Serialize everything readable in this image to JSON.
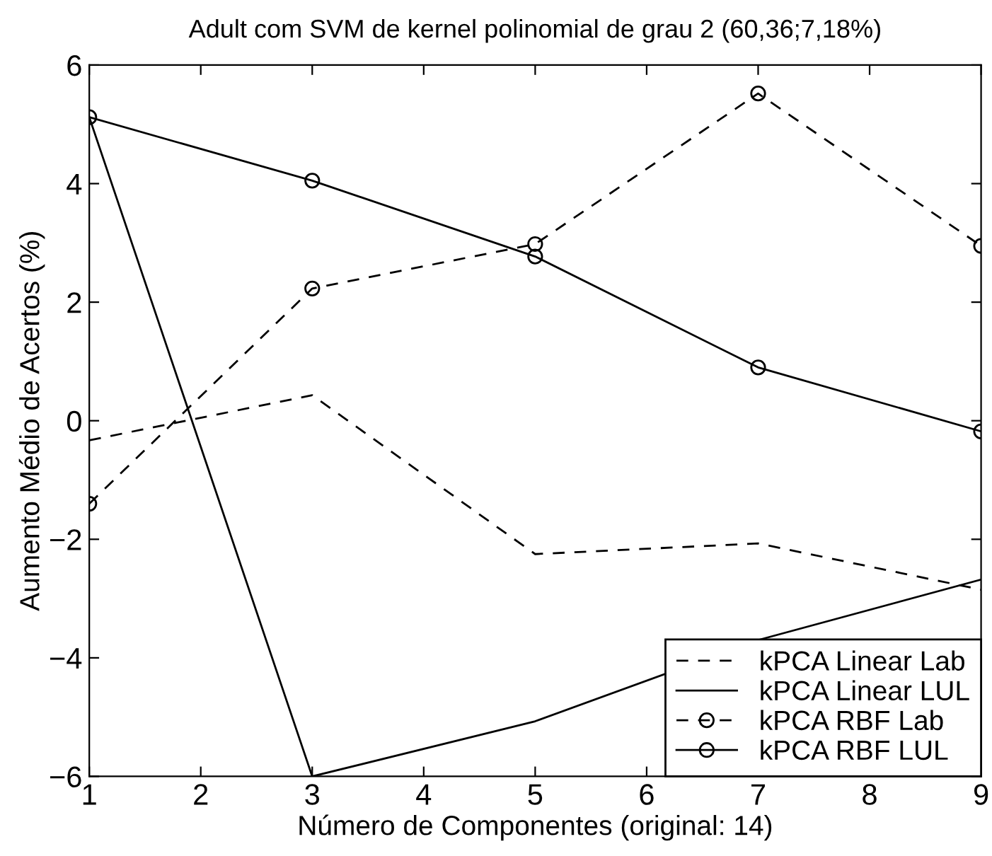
{
  "chart_data": {
    "type": "line",
    "title": "Adult com SVM de kernel polinomial de grau 2 (60,36;7,18%)",
    "xlabel": "Número de Componentes (original: 14)",
    "ylabel": "Aumento Médio de Acertos (%)",
    "x": [
      1,
      3,
      5,
      7,
      9
    ],
    "series": [
      {
        "name": "kPCA Linear Lab",
        "color": "#000000",
        "values": [
          -0.33,
          0.43,
          -2.25,
          -2.07,
          -2.85
        ],
        "line_style": "dashed",
        "marker": "none"
      },
      {
        "name": "kPCA Linear LUL",
        "color": "#000000",
        "values": [
          5.12,
          -6.0,
          -5.07,
          -3.7,
          -2.68
        ],
        "line_style": "solid",
        "marker": "none"
      },
      {
        "name": "kPCA RBF Lab",
        "color": "#000000",
        "values": [
          -1.4,
          2.23,
          2.98,
          5.52,
          2.95
        ],
        "line_style": "dashed",
        "marker": "circle"
      },
      {
        "name": "kPCA RBF LUL",
        "color": "#000000",
        "values": [
          5.12,
          4.05,
          2.77,
          0.9,
          -0.18
        ],
        "line_style": "solid",
        "marker": "circle"
      }
    ],
    "xlim": [
      1,
      9
    ],
    "xticks": [
      1,
      2,
      3,
      4,
      5,
      6,
      7,
      8,
      9
    ],
    "ylim": [
      -6,
      6
    ],
    "yticks": [
      -6,
      -4,
      -2,
      0,
      2,
      4,
      6
    ],
    "grid": false,
    "legend": "bottom right"
  }
}
